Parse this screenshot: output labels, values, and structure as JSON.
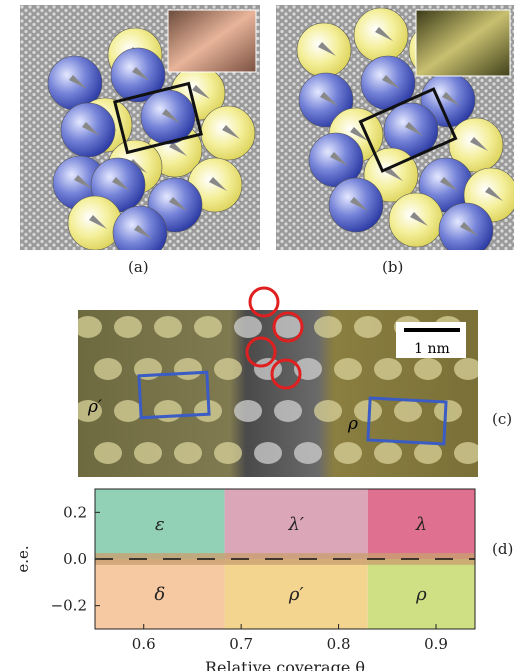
{
  "panels": {
    "a": {
      "label": "(a)"
    },
    "b": {
      "label": "(b)"
    },
    "c": {
      "label": "(c)",
      "scale_bar": "1 nm",
      "left_cell": "ρ′",
      "right_cell": "ρ"
    },
    "d": {
      "label": "(d)"
    }
  },
  "chart_data": {
    "type": "heatmap",
    "xlabel": "Relative coverage θ",
    "ylabel": "e.e.",
    "xlim": [
      0.55,
      0.94
    ],
    "ylim": [
      -0.3,
      0.3
    ],
    "x_ticks": [
      "0.6",
      "0.7",
      "0.8",
      "0.9"
    ],
    "y_ticks": [
      "0.2",
      "0.0",
      "−0.2"
    ],
    "regions": [
      {
        "name": "ε",
        "x0": 0.55,
        "x1": 0.683,
        "y0": 0.0,
        "y1": 0.3,
        "color": "#93d1b6"
      },
      {
        "name": "λ′",
        "x0": 0.683,
        "x1": 0.83,
        "y0": 0.0,
        "y1": 0.3,
        "color": "#dba6b8"
      },
      {
        "name": "λ",
        "x0": 0.83,
        "x1": 0.94,
        "y0": 0.0,
        "y1": 0.3,
        "color": "#e0708f"
      },
      {
        "name": "δ",
        "x0": 0.55,
        "x1": 0.683,
        "y0": -0.3,
        "y1": 0.0,
        "color": "#f7c9a2"
      },
      {
        "name": "ρ′",
        "x0": 0.683,
        "x1": 0.83,
        "y0": -0.3,
        "y1": 0.0,
        "color": "#f4d590"
      },
      {
        "name": "ρ",
        "x0": 0.83,
        "x1": 0.94,
        "y0": -0.3,
        "y1": 0.0,
        "color": "#cfe084"
      }
    ],
    "grid": false
  },
  "colors": {
    "blue_molecule": "#3b4fc0",
    "yellow_molecule": "#e8e070",
    "cell_outline_black": "#111111",
    "cell_outline_blue": "#3a5cc4"
  }
}
